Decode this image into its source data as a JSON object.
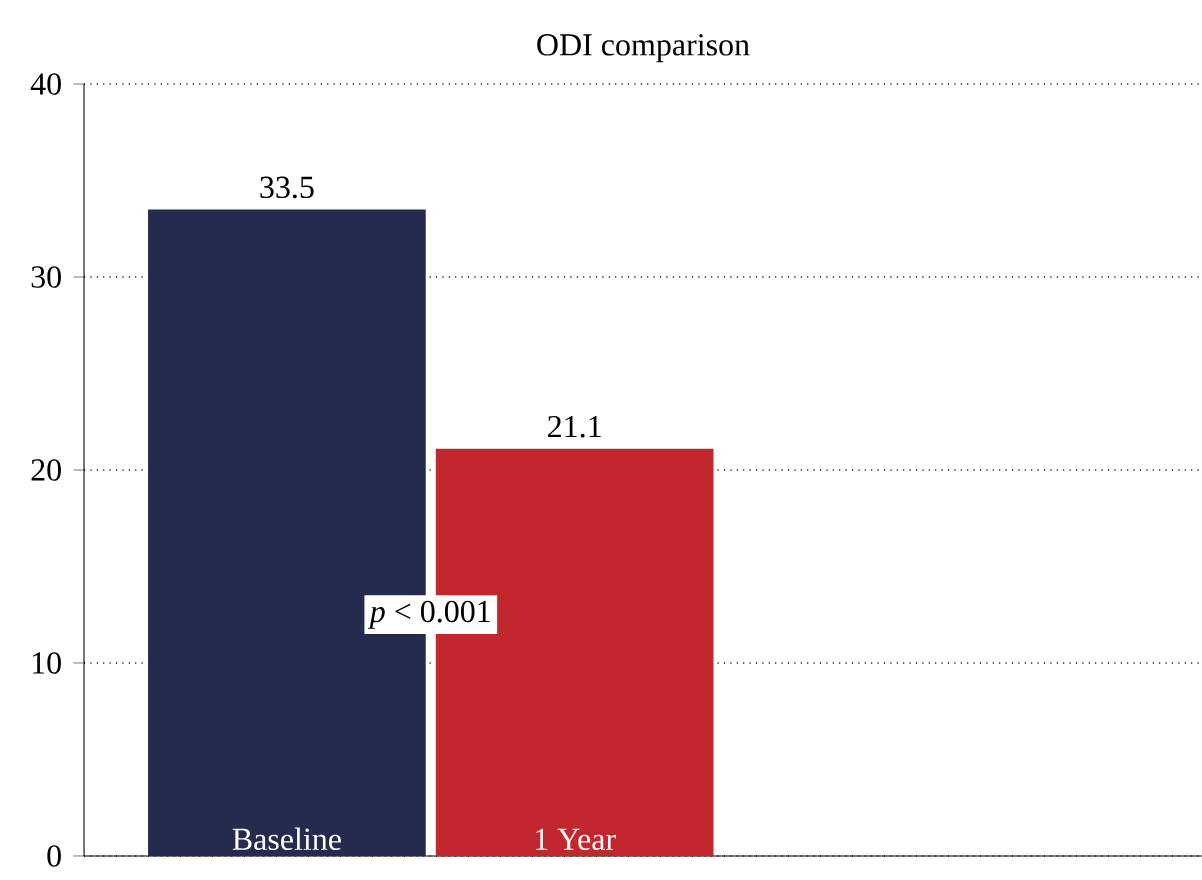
{
  "chart_data": {
    "type": "bar",
    "title": "ODI comparison",
    "categories": [
      "Baseline",
      "1 Year"
    ],
    "values": [
      33.5,
      21.1
    ],
    "colors": [
      "#252b4e",
      "#c1272d"
    ],
    "ylim": [
      0,
      40
    ],
    "yticks": [
      0,
      10,
      20,
      30,
      40
    ],
    "grid": "y",
    "data_labels": true,
    "annotations": [
      "*p* < 0.001"
    ]
  }
}
